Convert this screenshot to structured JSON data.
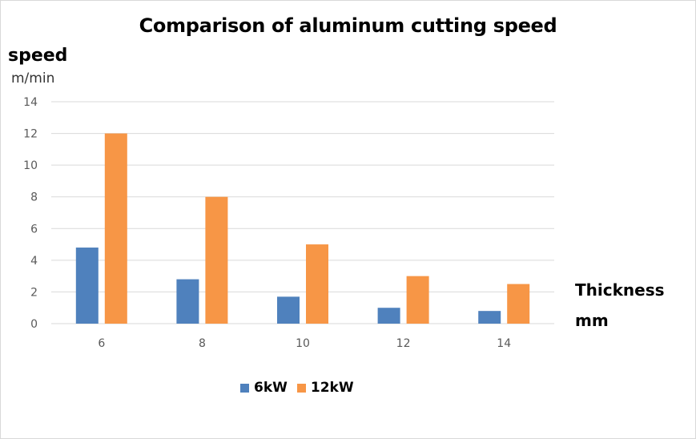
{
  "chart_data": {
    "type": "bar",
    "title": "Comparison of aluminum cutting speed",
    "ylabel": "speed",
    "yunit": "m/min",
    "xlabel": "Thickness",
    "xunit": "mm",
    "categories": [
      "6",
      "8",
      "10",
      "12",
      "14"
    ],
    "series": [
      {
        "name": "6kW",
        "color": "#4f81bd",
        "values": [
          4.8,
          2.8,
          1.7,
          1.0,
          0.8
        ]
      },
      {
        "name": "12kW",
        "color": "#f79646",
        "values": [
          12,
          8,
          5,
          3,
          2.5
        ]
      }
    ],
    "ylim": [
      0,
      14
    ],
    "yticks": [
      "0",
      "2",
      "4",
      "6",
      "8",
      "10",
      "12",
      "14"
    ],
    "grid": true,
    "legend_position": "bottom"
  }
}
